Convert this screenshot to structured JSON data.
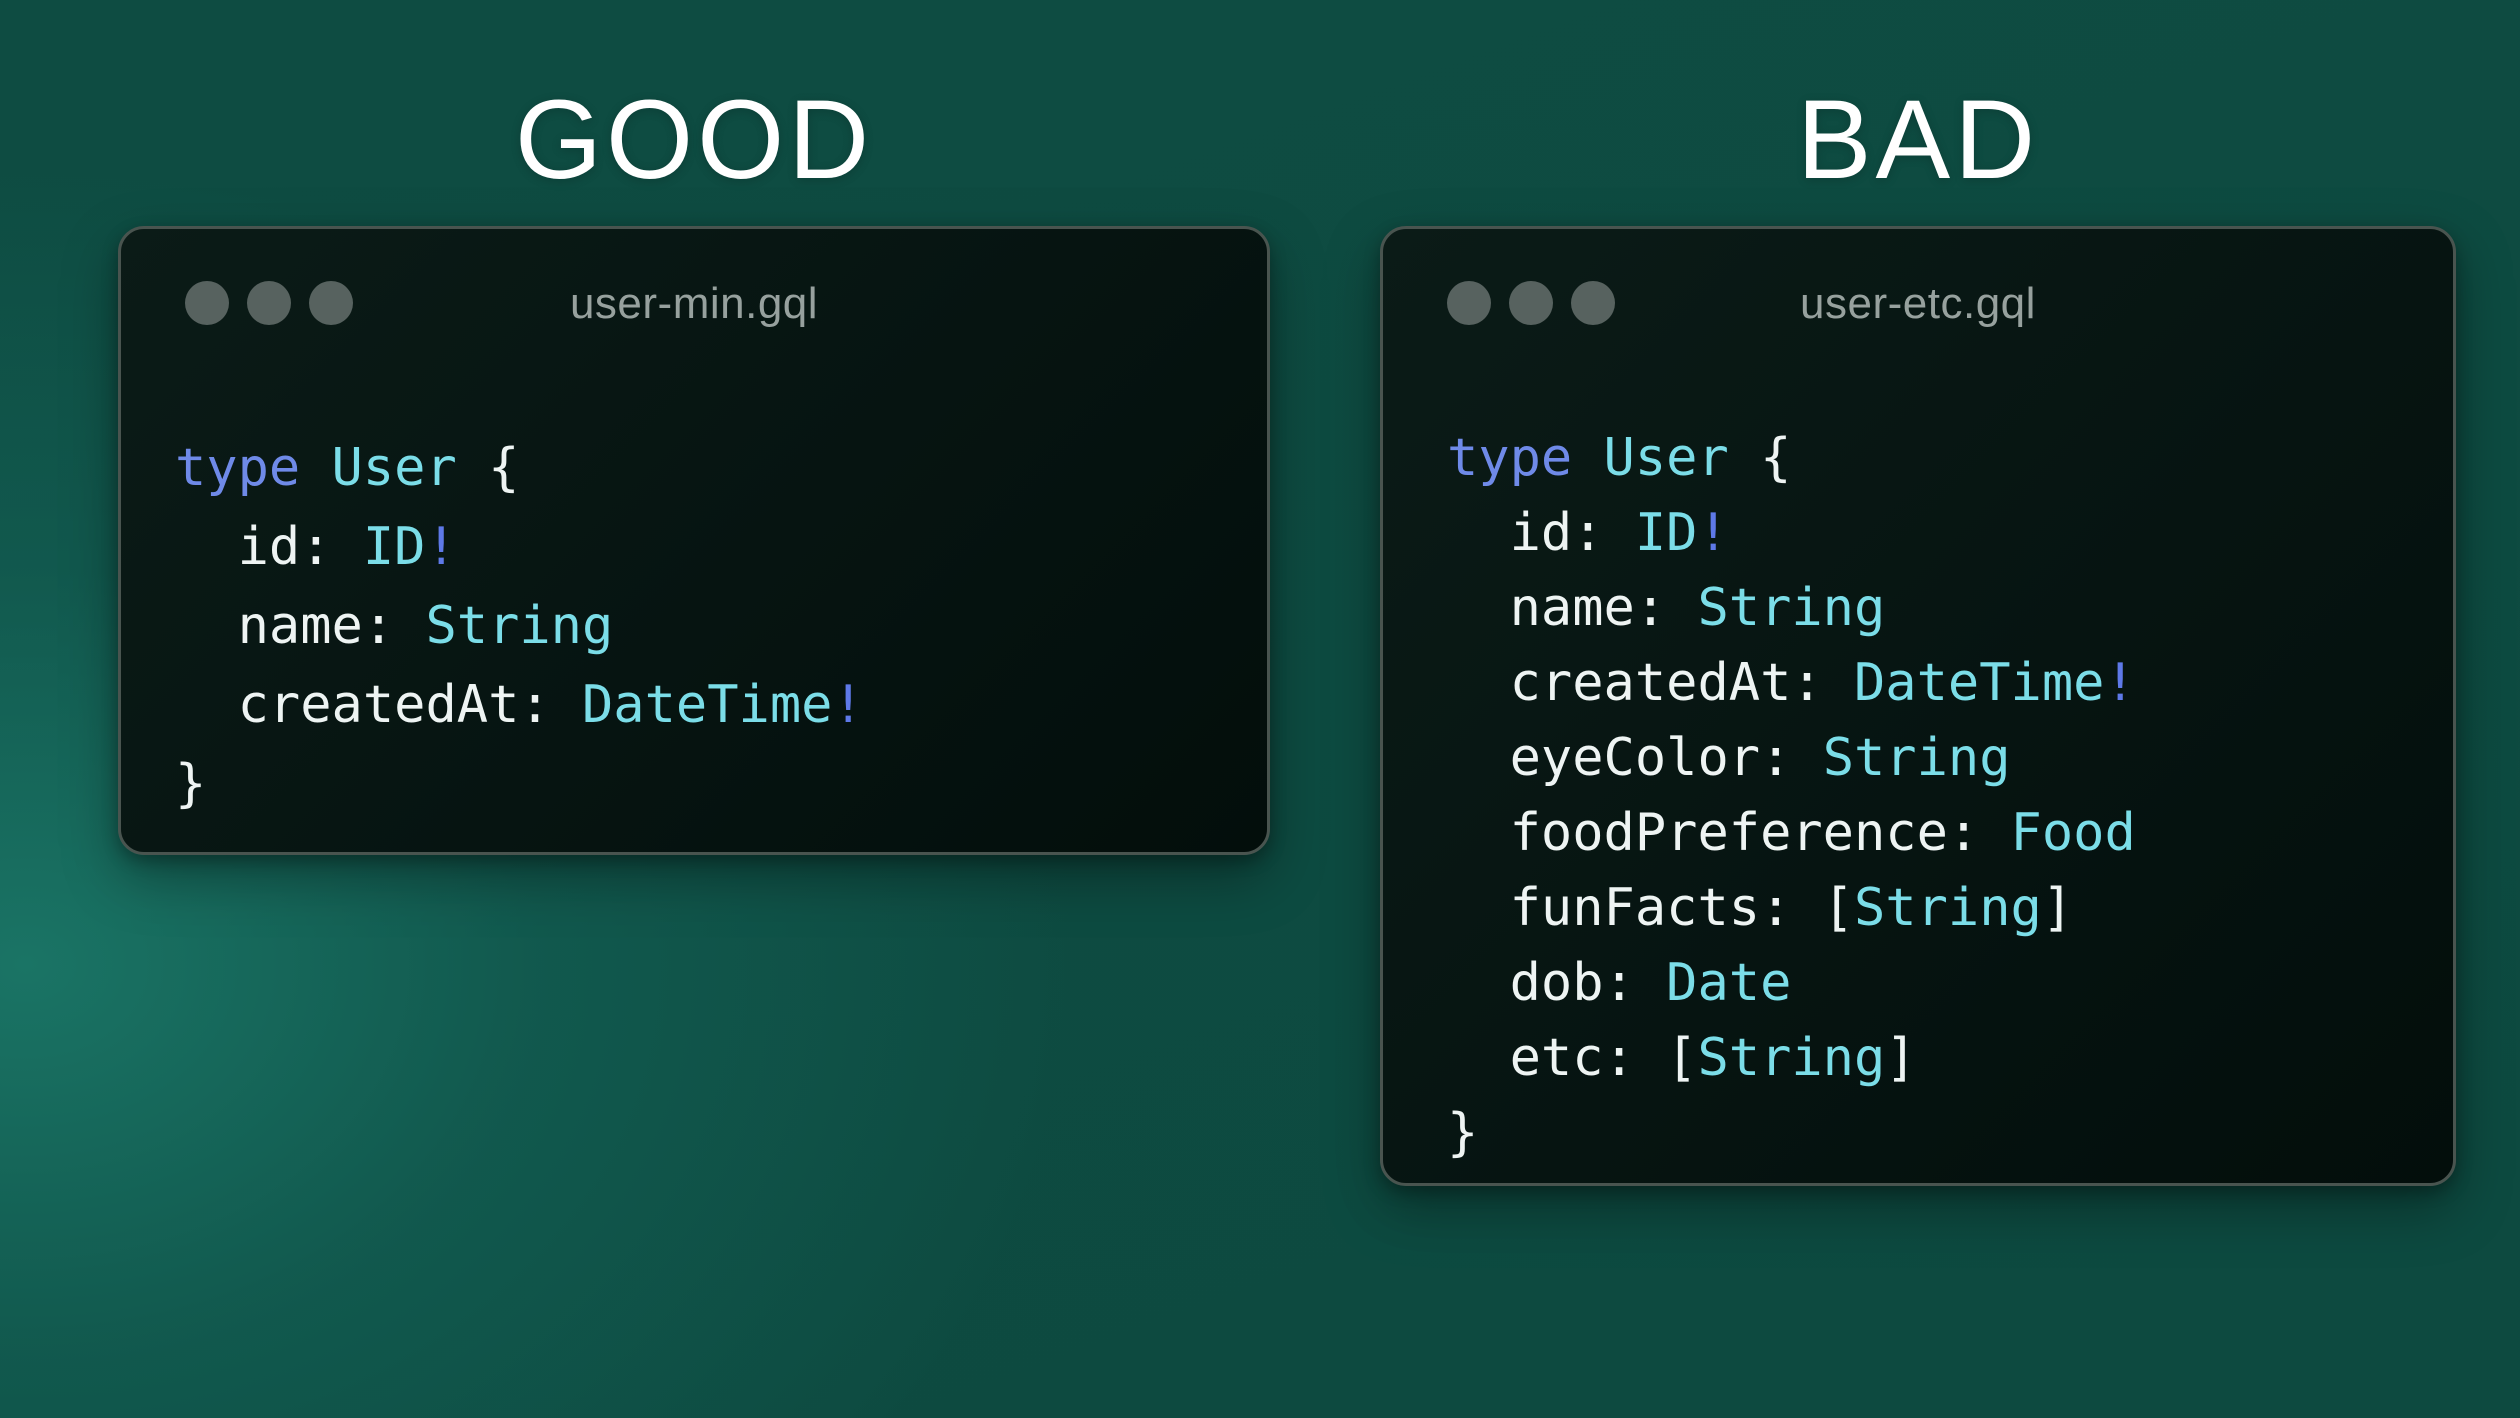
{
  "colors": {
    "background_base": "#0d4a40",
    "background_glow": "#1a7465",
    "heading_text": "#ffffff",
    "window_bg": "#061411",
    "window_border": "#49544f",
    "traffic_dot": "#57625f",
    "title_text": "#97a19e",
    "tokens": {
      "kw": "#6f8ae8",
      "ty": "#7bdde8",
      "pl": "#eef4f3",
      "bg": "#5e79e8"
    }
  },
  "panels": [
    {
      "heading": "GOOD",
      "window": {
        "title": "user-min.gql",
        "traffic_dots": [
          "dot",
          "dot",
          "dot"
        ],
        "code": [
          [
            [
              "kw",
              "type"
            ],
            [
              "pl",
              " "
            ],
            [
              "ty",
              "User"
            ],
            [
              "pl",
              " {"
            ]
          ],
          [
            [
              "pl",
              "  id: "
            ],
            [
              "ty",
              "ID"
            ],
            [
              "bg",
              "!"
            ]
          ],
          [
            [
              "pl",
              "  name: "
            ],
            [
              "ty",
              "String"
            ]
          ],
          [
            [
              "pl",
              "  createdAt: "
            ],
            [
              "ty",
              "DateTime"
            ],
            [
              "bg",
              "!"
            ]
          ],
          [
            [
              "pl",
              "}"
            ]
          ]
        ]
      }
    },
    {
      "heading": "BAD",
      "window": {
        "title": "user-etc.gql",
        "traffic_dots": [
          "dot",
          "dot",
          "dot"
        ],
        "code": [
          [
            [
              "kw",
              "type"
            ],
            [
              "pl",
              " "
            ],
            [
              "ty",
              "User"
            ],
            [
              "pl",
              " {"
            ]
          ],
          [
            [
              "pl",
              "  id: "
            ],
            [
              "ty",
              "ID"
            ],
            [
              "bg",
              "!"
            ]
          ],
          [
            [
              "pl",
              "  name: "
            ],
            [
              "ty",
              "String"
            ]
          ],
          [
            [
              "pl",
              "  createdAt: "
            ],
            [
              "ty",
              "DateTime"
            ],
            [
              "bg",
              "!"
            ]
          ],
          [
            [
              "pl",
              "  eyeColor: "
            ],
            [
              "ty",
              "String"
            ]
          ],
          [
            [
              "pl",
              "  foodPreference: "
            ],
            [
              "ty",
              "Food"
            ]
          ],
          [
            [
              "pl",
              "  funFacts: ["
            ],
            [
              "ty",
              "String"
            ],
            [
              "pl",
              "]"
            ]
          ],
          [
            [
              "pl",
              "  dob: "
            ],
            [
              "ty",
              "Date"
            ]
          ],
          [
            [
              "pl",
              "  etc: ["
            ],
            [
              "ty",
              "String"
            ],
            [
              "pl",
              "]"
            ]
          ],
          [
            [
              "pl",
              "}"
            ]
          ]
        ]
      }
    }
  ]
}
